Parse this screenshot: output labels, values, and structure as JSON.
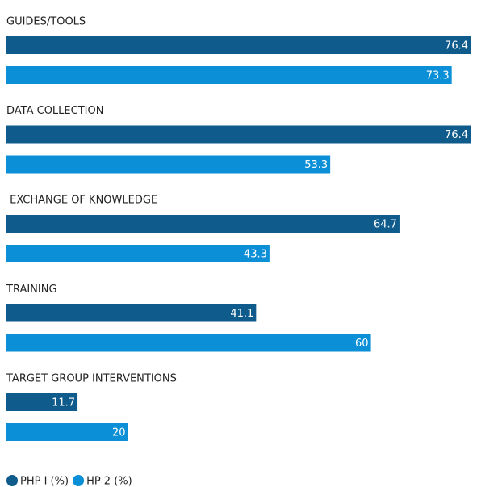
{
  "chart_data": {
    "type": "bar",
    "orientation": "horizontal",
    "categories": [
      "GUIDES/TOOLS",
      "DATA COLLECTION",
      " EXCHANGE OF KNOWLEDGE",
      "TRAINING",
      "TARGET GROUP INTERVENTIONS"
    ],
    "series": [
      {
        "name": "PHP I (%)",
        "color": "#0f5b8c",
        "values": [
          76.4,
          76.4,
          64.7,
          41.1,
          11.7
        ]
      },
      {
        "name": "HP 2 (%)",
        "color": "#0b8fd7",
        "values": [
          73.3,
          53.3,
          43.3,
          60,
          20
        ]
      }
    ],
    "legend": "bottom-left"
  }
}
